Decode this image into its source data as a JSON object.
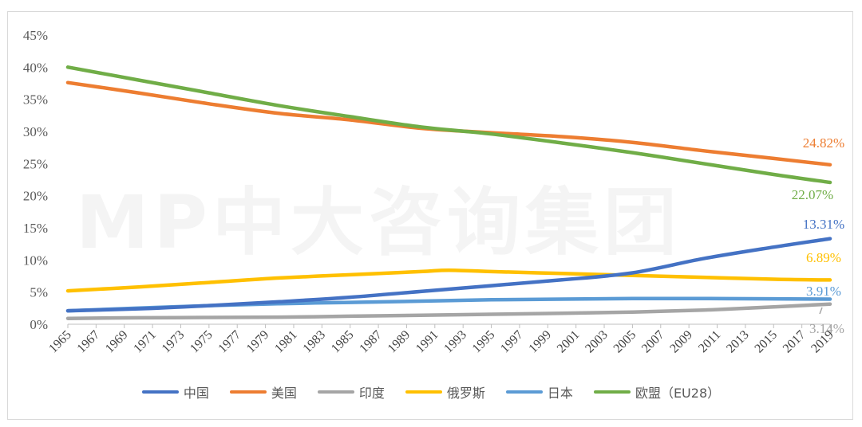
{
  "chart_data": {
    "type": "line",
    "title": "",
    "xlabel": "",
    "ylabel": "",
    "watermark": "MP中大咨询集团",
    "ylim": [
      0,
      45
    ],
    "y_ticks": [
      "0%",
      "5%",
      "10%",
      "15%",
      "20%",
      "25%",
      "30%",
      "35%",
      "40%",
      "45%"
    ],
    "x_ticks": [
      "1965",
      "1967",
      "1969",
      "1971",
      "1973",
      "1975",
      "1977",
      "1979",
      "1981",
      "1983",
      "1985",
      "1987",
      "1989",
      "1991",
      "1993",
      "1995",
      "1997",
      "1999",
      "2001",
      "2003",
      "2005",
      "2007",
      "2009",
      "2011",
      "2013",
      "2015",
      "2017",
      "2019"
    ],
    "grid": false,
    "legend_position": "bottom",
    "series": [
      {
        "name": "中国",
        "color": "#4472C4",
        "points": [
          [
            1965,
            2.1
          ],
          [
            1970,
            2.4
          ],
          [
            1975,
            2.9
          ],
          [
            1980,
            3.5
          ],
          [
            1985,
            4.2
          ],
          [
            1990,
            5.1
          ],
          [
            1995,
            6.0
          ],
          [
            2000,
            6.9
          ],
          [
            2005,
            8.0
          ],
          [
            2010,
            10.2
          ],
          [
            2015,
            12.0
          ],
          [
            2019,
            13.31
          ]
        ],
        "end_label": "13.31%"
      },
      {
        "name": "美国",
        "color": "#ED7D31",
        "points": [
          [
            1965,
            37.6
          ],
          [
            1970,
            36.0
          ],
          [
            1975,
            34.3
          ],
          [
            1980,
            32.8
          ],
          [
            1985,
            31.8
          ],
          [
            1990,
            30.5
          ],
          [
            1995,
            29.8
          ],
          [
            2000,
            29.2
          ],
          [
            2005,
            28.3
          ],
          [
            2010,
            27.0
          ],
          [
            2015,
            25.8
          ],
          [
            2019,
            24.82
          ]
        ],
        "end_label": "24.82%"
      },
      {
        "name": "印度",
        "color": "#A5A5A5",
        "points": [
          [
            1965,
            0.9
          ],
          [
            1970,
            1.0
          ],
          [
            1975,
            1.05
          ],
          [
            1980,
            1.1
          ],
          [
            1985,
            1.25
          ],
          [
            1990,
            1.4
          ],
          [
            1995,
            1.55
          ],
          [
            2000,
            1.7
          ],
          [
            2005,
            1.9
          ],
          [
            2010,
            2.2
          ],
          [
            2015,
            2.7
          ],
          [
            2019,
            3.14
          ]
        ],
        "end_label": "3.14%"
      },
      {
        "name": "俄罗斯",
        "color": "#FFC000",
        "points": [
          [
            1965,
            5.2
          ],
          [
            1970,
            5.8
          ],
          [
            1975,
            6.5
          ],
          [
            1980,
            7.2
          ],
          [
            1985,
            7.7
          ],
          [
            1990,
            8.2
          ],
          [
            1992,
            8.4
          ],
          [
            1995,
            8.2
          ],
          [
            2000,
            7.9
          ],
          [
            2005,
            7.6
          ],
          [
            2010,
            7.3
          ],
          [
            2015,
            7.0
          ],
          [
            2019,
            6.89
          ]
        ],
        "end_label": "6.89%"
      },
      {
        "name": "日本",
        "color": "#5B9BD5",
        "points": [
          [
            1965,
            2.1
          ],
          [
            1970,
            2.5
          ],
          [
            1975,
            2.9
          ],
          [
            1980,
            3.2
          ],
          [
            1985,
            3.4
          ],
          [
            1990,
            3.6
          ],
          [
            1995,
            3.8
          ],
          [
            2000,
            3.9
          ],
          [
            2005,
            4.0
          ],
          [
            2010,
            4.0
          ],
          [
            2015,
            3.95
          ],
          [
            2019,
            3.91
          ]
        ],
        "end_label": "3.91%"
      },
      {
        "name": "欧盟（EU28）",
        "color": "#70AD47",
        "points": [
          [
            1965,
            40.0
          ],
          [
            1970,
            38.0
          ],
          [
            1975,
            36.0
          ],
          [
            1980,
            34.0
          ],
          [
            1985,
            32.3
          ],
          [
            1990,
            30.7
          ],
          [
            1995,
            29.6
          ],
          [
            2000,
            28.2
          ],
          [
            2005,
            26.7
          ],
          [
            2010,
            25.0
          ],
          [
            2015,
            23.3
          ],
          [
            2019,
            22.07
          ]
        ],
        "end_label": "22.07%"
      }
    ]
  }
}
